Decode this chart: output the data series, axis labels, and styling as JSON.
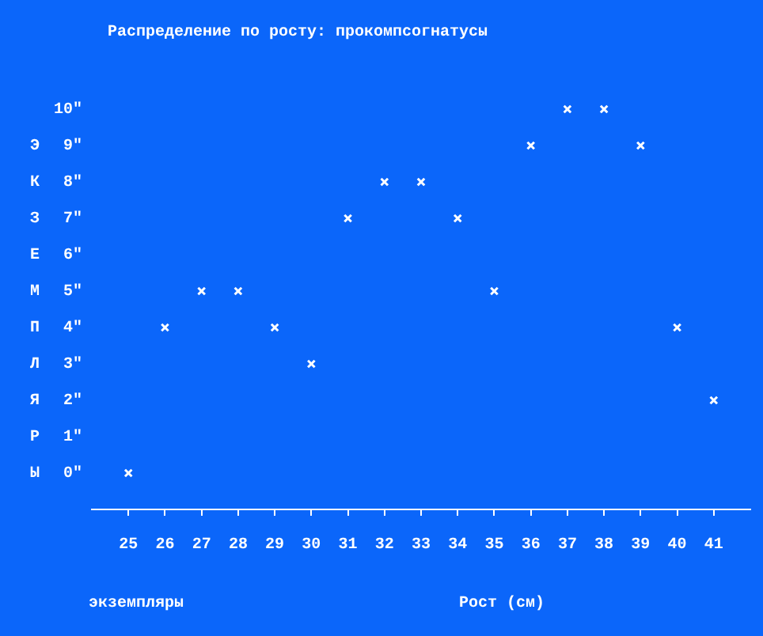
{
  "chart_data": {
    "type": "scatter",
    "title": "Распределение по росту: прокомпсогнатусы",
    "xlabel": "Рост (см)",
    "ylabel": "ЭКЗЕМПЛЯРЫ",
    "annotations": [
      "экземпляры"
    ],
    "x": [
      25,
      26,
      27,
      28,
      29,
      30,
      31,
      32,
      33,
      34,
      35,
      36,
      37,
      38,
      39,
      40,
      41
    ],
    "series": [
      {
        "color": "#ffffff",
        "values": [
          0,
          4,
          5,
          5,
          4,
          3,
          7,
          8,
          8,
          7,
          5,
          9,
          10,
          10,
          9,
          4,
          2
        ]
      }
    ],
    "xlim": [
      24,
      42
    ],
    "xticks": [
      25,
      26,
      27,
      28,
      29,
      30,
      31,
      32,
      33,
      34,
      35,
      36,
      37,
      38,
      39,
      40,
      41
    ],
    "ylim": [
      -1,
      10
    ],
    "yticks": [
      {
        "value": 0,
        "label": "0\""
      },
      {
        "value": 1,
        "label": "1\""
      },
      {
        "value": 2,
        "label": "2\""
      },
      {
        "value": 3,
        "label": "3\""
      },
      {
        "value": 4,
        "label": "4\""
      },
      {
        "value": 5,
        "label": "5\""
      },
      {
        "value": 6,
        "label": "6\""
      },
      {
        "value": 7,
        "label": "7\""
      },
      {
        "value": 8,
        "label": "8\""
      },
      {
        "value": 9,
        "label": "9\""
      },
      {
        "value": 10,
        "label": "10\""
      }
    ],
    "grid": false,
    "legend": false,
    "marker": "cross"
  }
}
